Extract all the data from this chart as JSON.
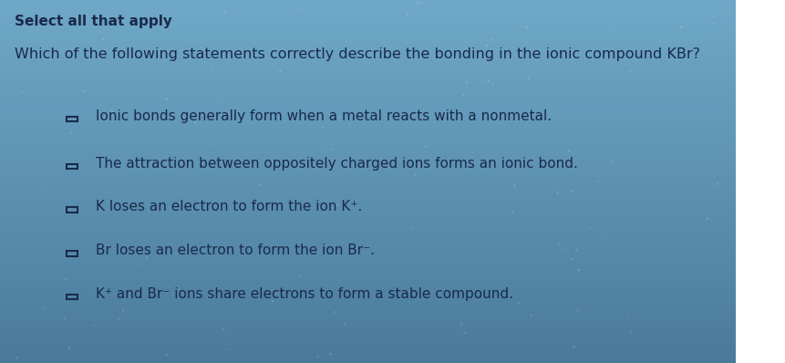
{
  "title": "Select all that apply",
  "question": "Which of the following statements correctly describe the bonding in the ionic compound KBr?",
  "options": [
    "Ionic bonds generally form when a metal reacts with a nonmetal.",
    "The attraction between oppositely charged ions forms an ionic bond.",
    "K loses an electron to form the ion K⁺.",
    "Br loses an electron to form the ion Br⁻.",
    "K⁺ and Br⁻ ions share electrons to form a stable compound."
  ],
  "bg_color_top": "#6fa8c8",
  "bg_color_bottom": "#4a7a9b",
  "text_color": "#1a2a4a",
  "title_fontsize": 11,
  "question_fontsize": 11.5,
  "option_fontsize": 11,
  "checkbox_size": 0.013,
  "figsize": [
    8.62,
    3.98
  ],
  "dpi": 100
}
